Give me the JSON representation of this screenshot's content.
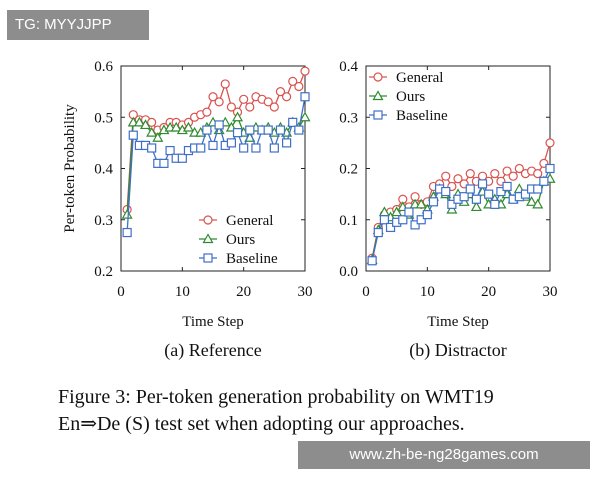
{
  "badge": "TG: MYYJJPP",
  "watermark": "www.zh-be-ng28games.com",
  "caption": {
    "line1": "Figure 3: Per-token generation probability on WMT19",
    "line2": "En⇒De (S) test set when adopting our approaches."
  },
  "colors": {
    "General": "#d9534f",
    "Ours": "#2e8b2e",
    "Baseline": "#3f6fc8"
  },
  "chart_data": [
    {
      "type": "line",
      "title": "(a) Reference",
      "xlabel": "Time Step",
      "ylabel": "Per-token Probability",
      "xlim": [
        0,
        30
      ],
      "ylim": [
        0.2,
        0.6
      ],
      "xticks": [
        0,
        10,
        20,
        30
      ],
      "yticks": [
        0.2,
        0.3,
        0.4,
        0.5,
        0.6
      ],
      "ytick_labels": [
        "0.2",
        "0.3",
        "0.4",
        "0.5",
        "0.6"
      ],
      "legend": "bottom-right",
      "x": [
        1,
        2,
        3,
        4,
        5,
        6,
        7,
        8,
        9,
        10,
        11,
        12,
        13,
        14,
        15,
        16,
        17,
        18,
        19,
        20,
        21,
        22,
        23,
        24,
        25,
        26,
        27,
        28,
        29,
        30
      ],
      "series": [
        {
          "name": "General",
          "marker": "circle",
          "values": [
            0.32,
            0.505,
            0.495,
            0.495,
            0.49,
            0.475,
            0.48,
            0.49,
            0.49,
            0.485,
            0.49,
            0.5,
            0.505,
            0.51,
            0.54,
            0.53,
            0.565,
            0.52,
            0.51,
            0.535,
            0.52,
            0.54,
            0.535,
            0.53,
            0.52,
            0.55,
            0.54,
            0.57,
            0.56,
            0.59
          ]
        },
        {
          "name": "Ours",
          "marker": "triangle",
          "values": [
            0.31,
            0.49,
            0.49,
            0.485,
            0.47,
            0.46,
            0.475,
            0.48,
            0.48,
            0.475,
            0.48,
            0.47,
            0.47,
            0.48,
            0.49,
            0.475,
            0.49,
            0.48,
            0.5,
            0.47,
            0.46,
            0.48,
            0.475,
            0.48,
            0.47,
            0.48,
            0.47,
            0.49,
            0.48,
            0.5
          ]
        },
        {
          "name": "Baseline",
          "marker": "square",
          "values": [
            0.275,
            0.465,
            0.445,
            0.445,
            0.44,
            0.41,
            0.41,
            0.435,
            0.42,
            0.42,
            0.435,
            0.44,
            0.44,
            0.475,
            0.445,
            0.485,
            0.445,
            0.45,
            0.47,
            0.44,
            0.475,
            0.44,
            0.475,
            0.475,
            0.44,
            0.475,
            0.45,
            0.49,
            0.475,
            0.54
          ]
        }
      ]
    },
    {
      "type": "line",
      "title": "(b) Distractor",
      "xlabel": "Time Step",
      "ylabel": "",
      "xlim": [
        0,
        30
      ],
      "ylim": [
        0.0,
        0.4
      ],
      "xticks": [
        0,
        10,
        20,
        30
      ],
      "yticks": [
        0.0,
        0.1,
        0.2,
        0.3,
        0.4
      ],
      "ytick_labels": [
        "0.0",
        "0.1",
        "0.2",
        "0.3",
        "0.4"
      ],
      "legend": "top-left",
      "x": [
        1,
        2,
        3,
        4,
        5,
        6,
        7,
        8,
        9,
        10,
        11,
        12,
        13,
        14,
        15,
        16,
        17,
        18,
        19,
        20,
        21,
        22,
        23,
        24,
        25,
        26,
        27,
        28,
        29,
        30
      ],
      "series": [
        {
          "name": "General",
          "marker": "circle",
          "values": [
            0.025,
            0.085,
            0.11,
            0.115,
            0.12,
            0.14,
            0.125,
            0.145,
            0.13,
            0.135,
            0.165,
            0.17,
            0.185,
            0.165,
            0.18,
            0.17,
            0.19,
            0.175,
            0.185,
            0.175,
            0.19,
            0.175,
            0.195,
            0.185,
            0.2,
            0.19,
            0.195,
            0.19,
            0.21,
            0.25
          ]
        },
        {
          "name": "Ours",
          "marker": "triangle",
          "values": [
            0.022,
            0.08,
            0.115,
            0.105,
            0.115,
            0.125,
            0.11,
            0.13,
            0.13,
            0.12,
            0.145,
            0.16,
            0.15,
            0.12,
            0.15,
            0.135,
            0.15,
            0.125,
            0.155,
            0.13,
            0.14,
            0.13,
            0.15,
            0.14,
            0.16,
            0.145,
            0.135,
            0.13,
            0.175,
            0.18
          ]
        },
        {
          "name": "Baseline",
          "marker": "square",
          "values": [
            0.02,
            0.075,
            0.1,
            0.085,
            0.095,
            0.1,
            0.115,
            0.09,
            0.1,
            0.11,
            0.135,
            0.16,
            0.155,
            0.13,
            0.14,
            0.145,
            0.16,
            0.14,
            0.17,
            0.15,
            0.13,
            0.155,
            0.165,
            0.14,
            0.145,
            0.15,
            0.16,
            0.16,
            0.175,
            0.2
          ]
        }
      ]
    }
  ]
}
